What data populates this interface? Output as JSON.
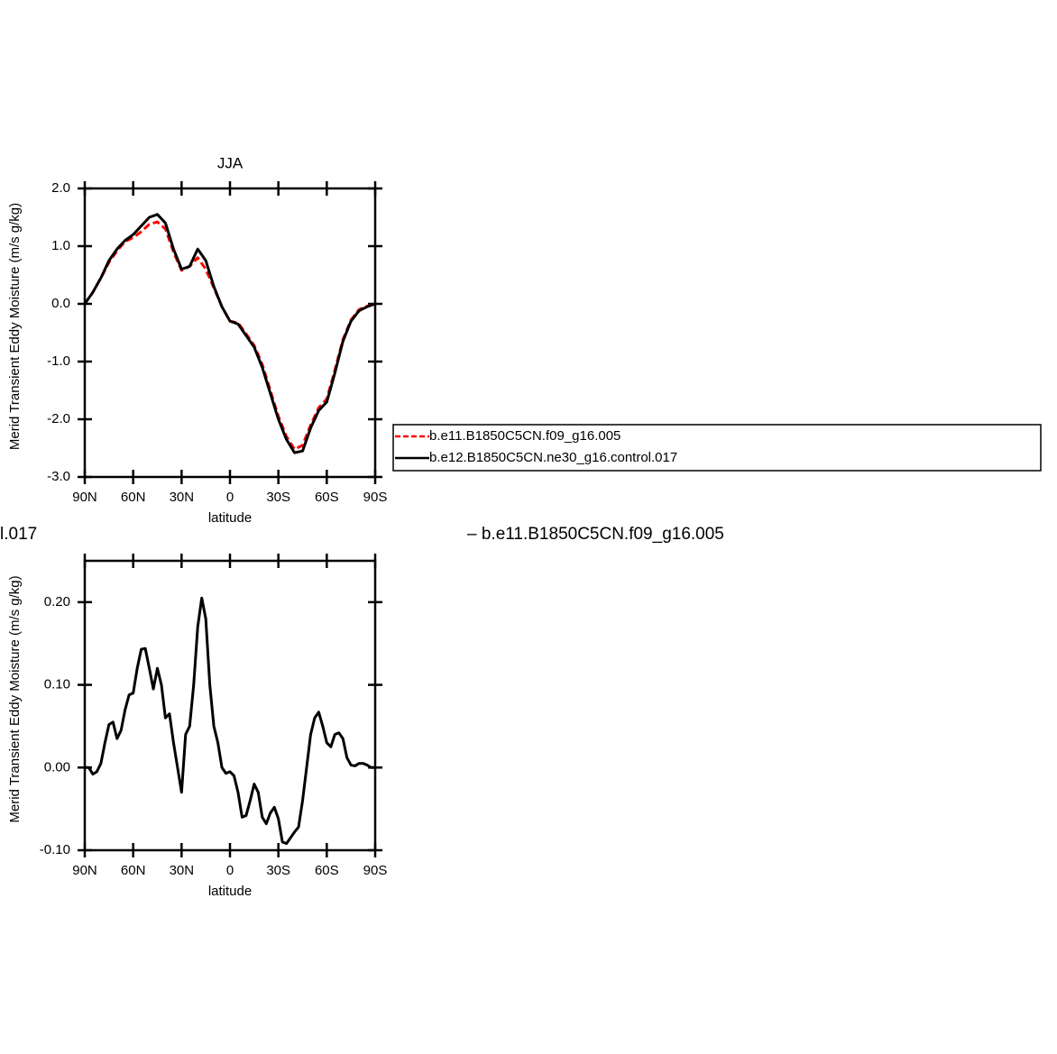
{
  "chart_data": [
    {
      "type": "line",
      "title": "JJA",
      "ylabel": "Merid Transient Eddy Moisture (m/s g/kg)",
      "xlabel": "latitude",
      "x": [
        90,
        85,
        80,
        75,
        70,
        65,
        60,
        55,
        50,
        45,
        40,
        35,
        30,
        25,
        20,
        15,
        10,
        5,
        0,
        -5,
        -10,
        -15,
        -20,
        -25,
        -30,
        -35,
        -40,
        -45,
        -50,
        -55,
        -60,
        -65,
        -70,
        -75,
        -80,
        -85,
        -90
      ],
      "series": [
        {
          "name": "b.e11.B1850C5CN.f09_g16.005",
          "color": "#ff0000",
          "dashed": true,
          "values": [
            0.0,
            0.2,
            0.45,
            0.72,
            0.92,
            1.08,
            1.15,
            1.25,
            1.38,
            1.42,
            1.3,
            0.9,
            0.58,
            0.65,
            0.8,
            0.6,
            0.28,
            -0.05,
            -0.3,
            -0.33,
            -0.52,
            -0.72,
            -1.05,
            -1.5,
            -1.95,
            -2.3,
            -2.52,
            -2.45,
            -2.1,
            -1.8,
            -1.65,
            -1.15,
            -0.62,
            -0.28,
            -0.1,
            -0.04,
            0.0
          ]
        },
        {
          "name": "b.e12.B1850C5CN.ne30_g16.control.017",
          "color": "#000000",
          "dashed": false,
          "values": [
            0.0,
            0.2,
            0.45,
            0.75,
            0.95,
            1.1,
            1.2,
            1.35,
            1.5,
            1.55,
            1.4,
            0.95,
            0.6,
            0.65,
            0.95,
            0.75,
            0.3,
            -0.05,
            -0.3,
            -0.35,
            -0.55,
            -0.75,
            -1.1,
            -1.55,
            -2.0,
            -2.35,
            -2.58,
            -2.55,
            -2.15,
            -1.85,
            -1.7,
            -1.2,
            -0.65,
            -0.3,
            -0.12,
            -0.05,
            0.0
          ]
        }
      ],
      "xlim": [
        90,
        -90
      ],
      "xticks": [
        {
          "value": 90,
          "label": "90N"
        },
        {
          "value": 60,
          "label": "60N"
        },
        {
          "value": 30,
          "label": "30N"
        },
        0,
        {
          "value": -30,
          "label": "30S"
        },
        {
          "value": -60,
          "label": "60S"
        },
        {
          "value": -90,
          "label": "90S"
        }
      ],
      "ylim": [
        -3,
        2
      ],
      "yticks": [
        {
          "value": 2,
          "label": "2.0"
        },
        {
          "value": 1,
          "label": "1.0"
        },
        {
          "value": 0,
          "label": "0.0"
        },
        {
          "value": -1,
          "label": "-1.0"
        },
        {
          "value": -2,
          "label": "-2.0"
        },
        {
          "value": -3,
          "label": "-3.0"
        }
      ],
      "legend": "right"
    },
    {
      "type": "line",
      "annotations": [
        "l.017",
        "– b.e11.B1850C5CN.f09_g16.005"
      ],
      "ylabel": "Merid Transient Eddy Moisture (m/s g/kg)",
      "xlabel": "latitude",
      "x": [
        90,
        87.5,
        85,
        82.5,
        80,
        77.5,
        75,
        72.5,
        70,
        67.5,
        65,
        62.5,
        60,
        57.5,
        55,
        52.5,
        50,
        47.5,
        45,
        42.5,
        40,
        37.5,
        35,
        32.5,
        30,
        27.5,
        25,
        22.5,
        20,
        17.5,
        15,
        12.5,
        10,
        7.5,
        5,
        2.5,
        0,
        -2.5,
        -5,
        -7.5,
        -10,
        -12.5,
        -15,
        -17.5,
        -20,
        -22.5,
        -25,
        -27.5,
        -30,
        -32.5,
        -35,
        -37.5,
        -40,
        -42.5,
        -45,
        -47.5,
        -50,
        -52.5,
        -55,
        -57.5,
        -60,
        -62.5,
        -65,
        -67.5,
        -70,
        -72.5,
        -75,
        -77.5,
        -80,
        -82.5,
        -85,
        -87.5,
        -90
      ],
      "values": [
        0.0,
        0.0,
        -0.008,
        -0.005,
        0.005,
        0.03,
        0.052,
        0.055,
        0.035,
        0.045,
        0.07,
        0.088,
        0.09,
        0.12,
        0.143,
        0.144,
        0.12,
        0.095,
        0.12,
        0.1,
        0.06,
        0.065,
        0.03,
        0.0,
        -0.03,
        0.04,
        0.05,
        0.1,
        0.17,
        0.205,
        0.18,
        0.1,
        0.05,
        0.03,
        0.0,
        -0.007,
        -0.005,
        -0.01,
        -0.03,
        -0.06,
        -0.058,
        -0.04,
        -0.02,
        -0.03,
        -0.06,
        -0.068,
        -0.055,
        -0.048,
        -0.062,
        -0.09,
        -0.092,
        -0.085,
        -0.078,
        -0.072,
        -0.04,
        0.0,
        0.04,
        0.06,
        0.067,
        0.05,
        0.03,
        0.025,
        0.04,
        0.042,
        0.035,
        0.012,
        0.003,
        0.002,
        0.005,
        0.005,
        0.003,
        0.0,
        0.0
      ],
      "color": "#000000",
      "xlim": [
        90,
        -90
      ],
      "xticks": [
        {
          "value": 90,
          "label": "90N"
        },
        {
          "value": 60,
          "label": "60N"
        },
        {
          "value": 30,
          "label": "30N"
        },
        0,
        {
          "value": -30,
          "label": "30S"
        },
        {
          "value": -60,
          "label": "60S"
        },
        {
          "value": -90,
          "label": "90S"
        }
      ],
      "ylim": [
        -0.1,
        0.25
      ],
      "yticks": [
        {
          "value": -0.1,
          "label": "-0.10"
        },
        {
          "value": 0,
          "label": "0.00"
        },
        {
          "value": 0.1,
          "label": "0.10"
        },
        {
          "value": 0.2,
          "label": "0.20"
        }
      ]
    }
  ]
}
